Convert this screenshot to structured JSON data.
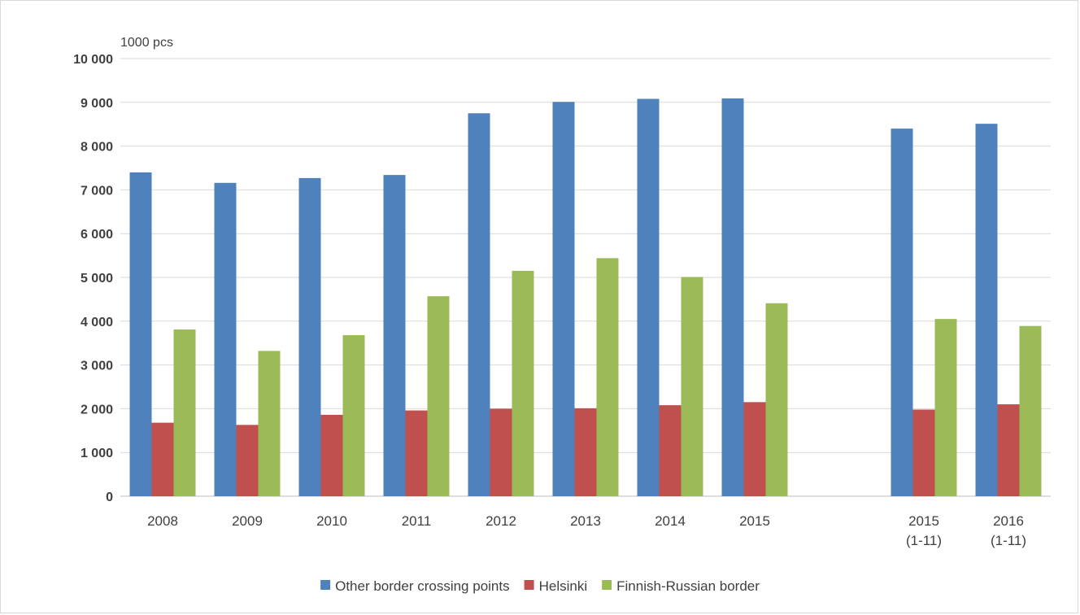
{
  "chart_data": {
    "type": "bar",
    "unit_label": "1000 pcs",
    "categories": [
      [
        "2008"
      ],
      [
        "2009"
      ],
      [
        "2010"
      ],
      [
        "2011"
      ],
      [
        "2012"
      ],
      [
        "2013"
      ],
      [
        "2014"
      ],
      [
        "2015"
      ],
      [],
      [
        "2015",
        "(1-11)"
      ],
      [
        "2016",
        "(1-11)"
      ]
    ],
    "series": [
      {
        "name": "Other border crossing points",
        "color": "#4f81bd",
        "values": [
          7400,
          7160,
          7270,
          7340,
          8750,
          9010,
          9080,
          9090,
          null,
          8400,
          8510
        ]
      },
      {
        "name": "Helsinki",
        "color": "#c0504d",
        "values": [
          1680,
          1630,
          1860,
          1960,
          2000,
          2010,
          2080,
          2150,
          null,
          1980,
          2100
        ]
      },
      {
        "name": "Finnish-Russian border",
        "color": "#9bbb59",
        "values": [
          3810,
          3320,
          3680,
          4570,
          5150,
          5440,
          5010,
          4410,
          null,
          4050,
          3890
        ]
      }
    ],
    "yticks": [
      "0",
      "1 000",
      "2 000",
      "3 000",
      "4 000",
      "5 000",
      "6 000",
      "7 000",
      "8 000",
      "9 000",
      "10 000"
    ],
    "ylim": [
      0,
      10000
    ],
    "grid": true,
    "legend_position": "bottom"
  }
}
